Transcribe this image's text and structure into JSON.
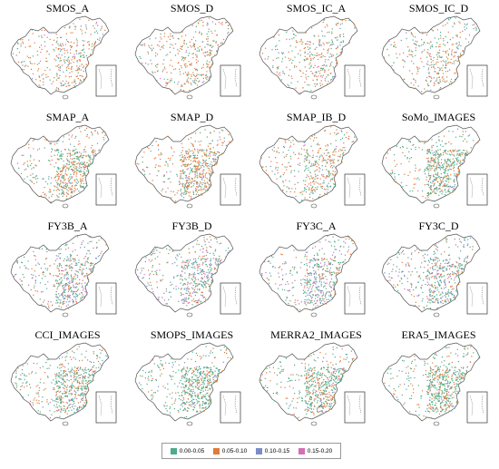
{
  "panels": [
    {
      "title": "SMOS_A",
      "density": 0.45,
      "mix": [
        0.3,
        0.55,
        0.1,
        0.05
      ]
    },
    {
      "title": "SMOS_D",
      "density": 0.45,
      "mix": [
        0.3,
        0.55,
        0.1,
        0.05
      ]
    },
    {
      "title": "SMOS_IC_A",
      "density": 0.4,
      "mix": [
        0.35,
        0.5,
        0.1,
        0.05
      ]
    },
    {
      "title": "SMOS_IC_D",
      "density": 0.4,
      "mix": [
        0.35,
        0.5,
        0.1,
        0.05
      ]
    },
    {
      "title": "SMAP_A",
      "density": 0.85,
      "mix": [
        0.45,
        0.45,
        0.05,
        0.05
      ]
    },
    {
      "title": "SMAP_D",
      "density": 0.85,
      "mix": [
        0.35,
        0.55,
        0.05,
        0.05
      ]
    },
    {
      "title": "SMAP_IB_D",
      "density": 0.55,
      "mix": [
        0.4,
        0.5,
        0.05,
        0.05
      ]
    },
    {
      "title": "SoMo_IMAGES",
      "density": 0.9,
      "mix": [
        0.65,
        0.3,
        0.03,
        0.02
      ]
    },
    {
      "title": "FY3B_A",
      "density": 0.75,
      "mix": [
        0.4,
        0.25,
        0.2,
        0.15
      ]
    },
    {
      "title": "FY3B_D",
      "density": 0.7,
      "mix": [
        0.4,
        0.25,
        0.2,
        0.15
      ]
    },
    {
      "title": "FY3C_A",
      "density": 0.7,
      "mix": [
        0.45,
        0.2,
        0.2,
        0.15
      ]
    },
    {
      "title": "FY3C_D",
      "density": 0.75,
      "mix": [
        0.45,
        0.25,
        0.2,
        0.1
      ]
    },
    {
      "title": "CCI_IMAGES",
      "density": 0.9,
      "mix": [
        0.6,
        0.3,
        0.07,
        0.03
      ]
    },
    {
      "title": "SMOPS_IMAGES",
      "density": 0.9,
      "mix": [
        0.65,
        0.25,
        0.07,
        0.03
      ]
    },
    {
      "title": "MERRA2_IMAGES",
      "density": 0.9,
      "mix": [
        0.6,
        0.3,
        0.07,
        0.03
      ]
    },
    {
      "title": "ERA5_IMAGES",
      "density": 0.9,
      "mix": [
        0.6,
        0.32,
        0.05,
        0.03
      ]
    }
  ],
  "legend": [
    {
      "label": "0.00-0.05",
      "color": "#4dab8a"
    },
    {
      "label": "0.05-0.10",
      "color": "#e07b39"
    },
    {
      "label": "0.10-0.15",
      "color": "#7b8cc8"
    },
    {
      "label": "0.15-0.20",
      "color": "#d36fb5"
    }
  ]
}
